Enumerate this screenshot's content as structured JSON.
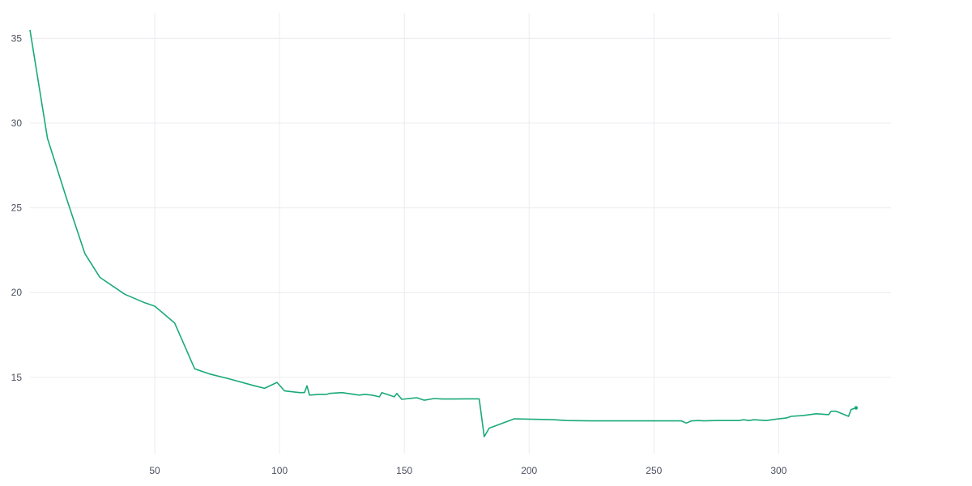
{
  "chart_data": {
    "type": "line",
    "title": "",
    "xlabel": "",
    "ylabel": "",
    "xlim": [
      0,
      345
    ],
    "ylim": [
      10.5,
      36.5
    ],
    "x_ticks": [
      50,
      100,
      150,
      200,
      250,
      300
    ],
    "y_ticks": [
      15,
      20,
      25,
      30,
      35
    ],
    "grid": true,
    "series": [
      {
        "color": "#1aa97a",
        "x": [
          0,
          7,
          15,
          22,
          28,
          38,
          46,
          50,
          58,
          66,
          72,
          80,
          90,
          94,
          99,
          102,
          108,
          110,
          111,
          112,
          116,
          119,
          120,
          125,
          132,
          134,
          137,
          140,
          141,
          146,
          147,
          149,
          155,
          158,
          162,
          165,
          170,
          175,
          180,
          182,
          184,
          194,
          210,
          215,
          225,
          230,
          235,
          240,
          245,
          250,
          255,
          261,
          263,
          265,
          268,
          270,
          275,
          280,
          284,
          286,
          288,
          290,
          295,
          300,
          303,
          305,
          310,
          315,
          320,
          321,
          323,
          328,
          329,
          331
        ],
        "y": [
          35.5,
          29.1,
          25.4,
          22.3,
          20.9,
          19.9,
          19.4,
          19.2,
          18.2,
          15.5,
          15.2,
          14.9,
          14.5,
          14.35,
          14.7,
          14.2,
          14.1,
          14.1,
          14.5,
          13.95,
          14.0,
          14.0,
          14.05,
          14.1,
          13.95,
          14.0,
          13.95,
          13.85,
          14.1,
          13.85,
          14.05,
          13.7,
          13.8,
          13.65,
          13.75,
          13.72,
          13.72,
          13.73,
          13.73,
          11.5,
          12.0,
          12.55,
          12.5,
          12.45,
          12.43,
          12.43,
          12.43,
          12.43,
          12.43,
          12.43,
          12.43,
          12.43,
          12.3,
          12.43,
          12.45,
          12.43,
          12.45,
          12.45,
          12.45,
          12.5,
          12.45,
          12.5,
          12.45,
          12.55,
          12.6,
          12.7,
          12.75,
          12.85,
          12.8,
          13.0,
          13.0,
          12.7,
          13.1,
          13.2
        ]
      }
    ]
  }
}
